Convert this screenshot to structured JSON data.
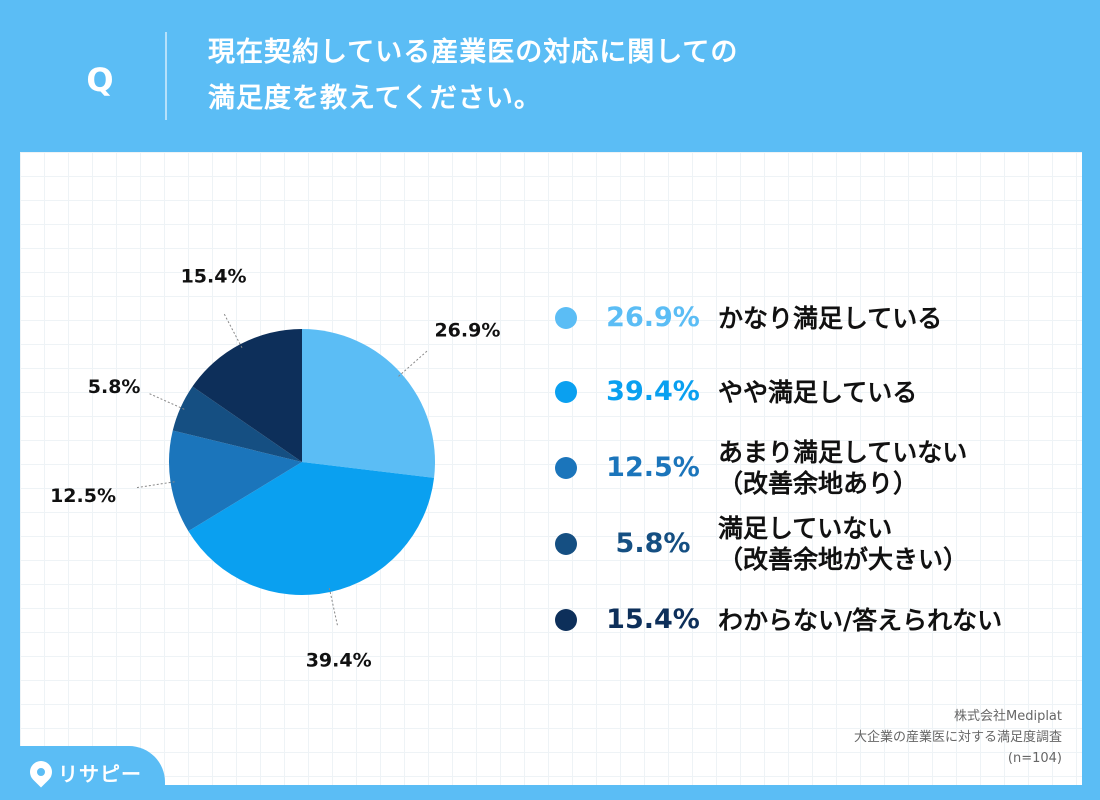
{
  "question": {
    "mark": "Q",
    "title_lines": [
      "現在契約している産業医の対応に関しての",
      "満足度を教えてください。"
    ]
  },
  "chart_data": {
    "type": "pie",
    "categories": [
      "かなり満足している",
      "やや満足している",
      "あまり満足していない\n（改善余地あり）",
      "満足していない\n（改善余地が大きい）",
      "わからない/答えられない"
    ],
    "values": [
      26.9,
      39.4,
      12.5,
      5.8,
      15.4
    ],
    "labels": [
      "26.9%",
      "39.4%",
      "12.5%",
      "5.8%",
      "15.4%"
    ],
    "colors": [
      "#5bbdf5",
      "#0aa0f0",
      "#1b75bb",
      "#154f82",
      "#0d2f5a"
    ],
    "start_angle_deg": 0,
    "direction": "clockwise",
    "legend_position": "right"
  },
  "source": {
    "company": "株式会社Mediplat",
    "survey": "大企業の産業医に対する満足度調査",
    "sample": "(n=104)"
  },
  "logo": {
    "text": "リサピー"
  }
}
